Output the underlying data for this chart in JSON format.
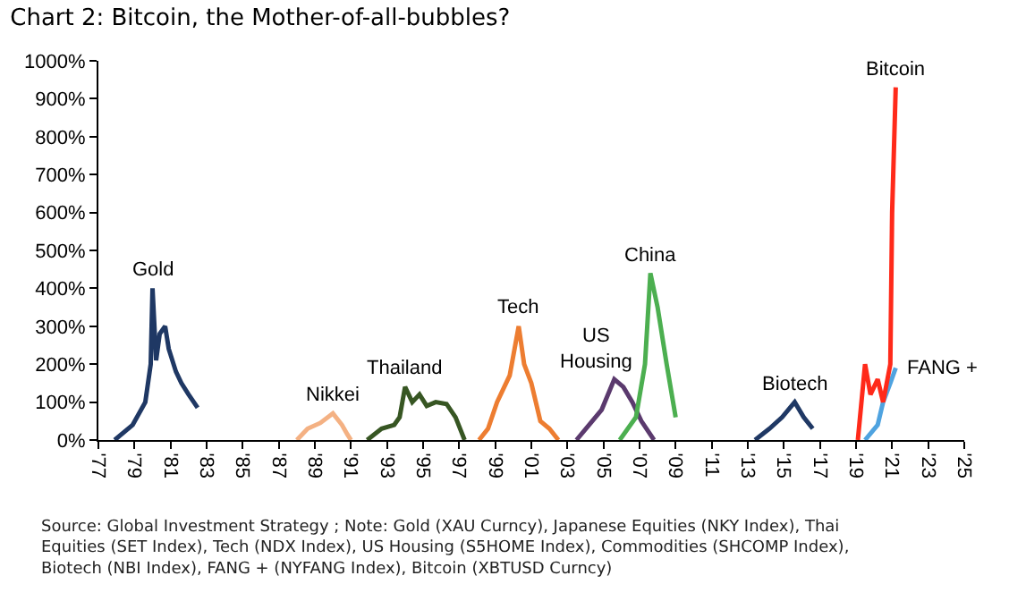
{
  "chart_data": {
    "type": "line",
    "title": "Chart 2: Bitcoin, the Mother-of-all-bubbles?",
    "annotations": [
      "Source: Global Investment Strategy ; Note: Gold (XAU Curncy), Japanese Equities (NKY Index), Thai Equities (SET Index), Tech (NDX Index), US Housing (S5HOME Index), Commodities (SHCOMP Index), Biotech (NBI Index), FANG + (NYFANG Index), Bitcoin (XBTUSD Curncy)"
    ],
    "xlim": [
      1977,
      2025
    ],
    "xticks": [
      {
        "value": 1977,
        "label": "'77"
      },
      {
        "value": 1979,
        "label": "'79"
      },
      {
        "value": 1981,
        "label": "'81"
      },
      {
        "value": 1983,
        "label": "'83"
      },
      {
        "value": 1985,
        "label": "'85"
      },
      {
        "value": 1987,
        "label": "'87"
      },
      {
        "value": 1989,
        "label": "'89"
      },
      {
        "value": 1991,
        "label": "'91"
      },
      {
        "value": 1993,
        "label": "'93"
      },
      {
        "value": 1995,
        "label": "'95"
      },
      {
        "value": 1997,
        "label": "'97"
      },
      {
        "value": 1999,
        "label": "'99"
      },
      {
        "value": 2001,
        "label": "'01"
      },
      {
        "value": 2003,
        "label": "'03"
      },
      {
        "value": 2005,
        "label": "'05"
      },
      {
        "value": 2007,
        "label": "'07"
      },
      {
        "value": 2009,
        "label": "'09"
      },
      {
        "value": 2011,
        "label": "'11"
      },
      {
        "value": 2013,
        "label": "'13"
      },
      {
        "value": 2015,
        "label": "'15"
      },
      {
        "value": 2017,
        "label": "'17"
      },
      {
        "value": 2019,
        "label": "'19"
      },
      {
        "value": 2021,
        "label": "'21"
      },
      {
        "value": 2023,
        "label": "'23"
      },
      {
        "value": 2025,
        "label": "'25"
      }
    ],
    "ylim": [
      0,
      1000
    ],
    "yticks": [
      {
        "value": 0,
        "label": "0%"
      },
      {
        "value": 100,
        "label": "100%"
      },
      {
        "value": 200,
        "label": "200%"
      },
      {
        "value": 300,
        "label": "300%"
      },
      {
        "value": 400,
        "label": "400%"
      },
      {
        "value": 500,
        "label": "500%"
      },
      {
        "value": 600,
        "label": "600%"
      },
      {
        "value": 700,
        "label": "700%"
      },
      {
        "value": 800,
        "label": "800%"
      },
      {
        "value": 900,
        "label": "900%"
      },
      {
        "value": 1000,
        "label": "1000%"
      }
    ],
    "grid": false,
    "legend": false,
    "marker": "none",
    "line_style": "solid",
    "series": [
      {
        "name": "Gold",
        "color": "#1f3864",
        "x": [
          1977.9,
          1978.9,
          1979.6,
          1979.9,
          1980.0,
          1980.2,
          1980.4,
          1980.7,
          1980.9,
          1981.3,
          1981.6,
          1982.0,
          1982.5
        ],
        "values": [
          0,
          40,
          100,
          200,
          400,
          210,
          280,
          300,
          240,
          180,
          150,
          120,
          85
        ]
      },
      {
        "name": "Nikkei",
        "color": "#f4b183",
        "x": [
          1988.0,
          1988.6,
          1989.3,
          1990.0,
          1990.5,
          1990.8,
          1991.0
        ],
        "values": [
          0,
          30,
          45,
          70,
          40,
          15,
          0
        ]
      },
      {
        "name": "Thailand",
        "color": "#375623",
        "x": [
          1991.9,
          1992.7,
          1993.4,
          1993.7,
          1994.0,
          1994.4,
          1994.8,
          1995.2,
          1995.7,
          1996.3,
          1996.8,
          1997.3
        ],
        "values": [
          0,
          30,
          40,
          60,
          140,
          100,
          120,
          90,
          100,
          95,
          60,
          0
        ]
      },
      {
        "name": "Tech",
        "color": "#ed7d31",
        "x": [
          1998.1,
          1998.6,
          1999.1,
          1999.8,
          2000.3,
          2000.6,
          2001.0,
          2001.5,
          2002.0,
          2002.5
        ],
        "values": [
          0,
          30,
          100,
          170,
          300,
          200,
          150,
          50,
          30,
          0
        ]
      },
      {
        "name": "US Housing",
        "color": "#5b3a6e",
        "x": [
          2003.5,
          2004.2,
          2004.9,
          2005.6,
          2006.1,
          2006.6,
          2007.1,
          2007.8
        ],
        "values": [
          0,
          40,
          80,
          160,
          140,
          100,
          50,
          0
        ]
      },
      {
        "name": "China",
        "color": "#4caf50",
        "x": [
          2005.9,
          2006.8,
          2007.3,
          2007.6,
          2008.0,
          2008.5,
          2009.0
        ],
        "values": [
          0,
          60,
          200,
          440,
          350,
          200,
          60
        ]
      },
      {
        "name": "Biotech",
        "color": "#1f3864",
        "x": [
          2013.4,
          2014.2,
          2014.9,
          2015.6,
          2016.1,
          2016.6
        ],
        "values": [
          0,
          30,
          60,
          100,
          60,
          30
        ]
      },
      {
        "name": "FANG +",
        "color": "#4fa3e0",
        "x": [
          2019.5,
          2020.2,
          2020.5,
          2020.9,
          2021.2
        ],
        "values": [
          0,
          40,
          100,
          150,
          190
        ]
      },
      {
        "name": "Bitcoin",
        "color": "#ff2a1a",
        "x": [
          2019.1,
          2019.5,
          2019.8,
          2020.2,
          2020.5,
          2020.9,
          2021.0,
          2021.2
        ],
        "values": [
          0,
          200,
          120,
          160,
          100,
          200,
          600,
          930
        ]
      }
    ]
  }
}
